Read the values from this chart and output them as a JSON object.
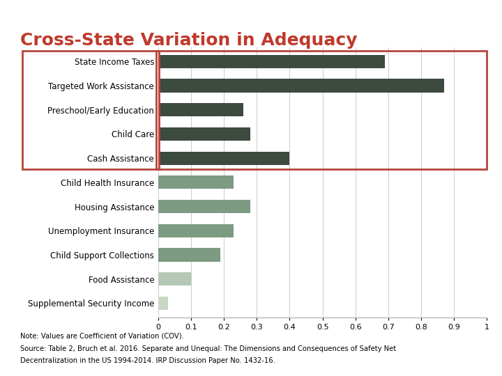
{
  "title": "Cross-State Variation in Adequacy",
  "title_color": "#c0392b",
  "categories": [
    "State Income Taxes",
    "Targeted Work Assistance",
    "Preschool/Early Education",
    "Child Care",
    "Cash Assistance",
    "Child Health Insurance",
    "Housing Assistance",
    "Unemployment Insurance",
    "Child Support Collections",
    "Food Assistance",
    "Supplemental Security Income"
  ],
  "values": [
    0.69,
    0.87,
    0.26,
    0.28,
    0.4,
    0.23,
    0.28,
    0.23,
    0.19,
    0.1,
    0.03
  ],
  "colors": [
    "#3d4a40",
    "#3d4a40",
    "#3d4a40",
    "#3d4a40",
    "#3d4a40",
    "#7d9a82",
    "#7d9a82",
    "#7d9a82",
    "#7d9a82",
    "#b5c8b5",
    "#c8d8c5"
  ],
  "box_color": "#b5443a",
  "xlim": [
    0,
    1
  ],
  "xticks": [
    0,
    0.1,
    0.2,
    0.3,
    0.4,
    0.5,
    0.6,
    0.7,
    0.8,
    0.9,
    1
  ],
  "xtick_labels": [
    "0",
    "0.1",
    "0.2",
    "0.3",
    "0.4",
    "0.5",
    "0.6",
    "0.7",
    "0.8",
    "0.9",
    "1"
  ],
  "note_line1": "Note: Values are Coefficient of Variation (COV).",
  "note_line2": "Source: Table 2, Bruch et al. 2016. Separate and Unequal: The Dimensions and Consequences of Safety Net",
  "note_line3": "Decentralization in the US 1994-2014. IRP Discussion Paper No. 1432-16.",
  "banner_color": "#8a9aa0",
  "background_color": "#ffffff",
  "bar_height": 0.55
}
